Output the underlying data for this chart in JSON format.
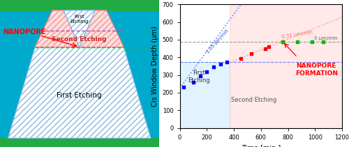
{
  "blue_x": [
    30,
    100,
    150,
    200,
    250,
    300,
    350
  ],
  "blue_y": [
    230,
    260,
    295,
    320,
    345,
    360,
    375
  ],
  "red_x": [
    450,
    530,
    630,
    660,
    760
  ],
  "red_y": [
    395,
    420,
    450,
    460,
    490
  ],
  "green_x": [
    760,
    870,
    980,
    1060
  ],
  "green_y": [
    490,
    490,
    490,
    490
  ],
  "xlim": [
    0,
    1200
  ],
  "ylim": [
    0,
    700
  ],
  "xlabel": "Time [min.]",
  "ylabel": "Cis Window Depth (μm)",
  "first_etching_end": 370,
  "plateau_y": 490,
  "dashed_y_blue": 375,
  "rate1": "1.05 μm/min",
  "rate2": "0.31 μm/min",
  "rate3": "0 μm/min",
  "label_first": "First\nEtching",
  "label_second": "Second Etching",
  "label_nanopore": "NANOPORE\nFORMATION",
  "bg_first_color": "#CCE8FF",
  "bg_second_color": "#FFCCCC",
  "teal_color": "#00AACC",
  "green_strip": "#22AA44"
}
